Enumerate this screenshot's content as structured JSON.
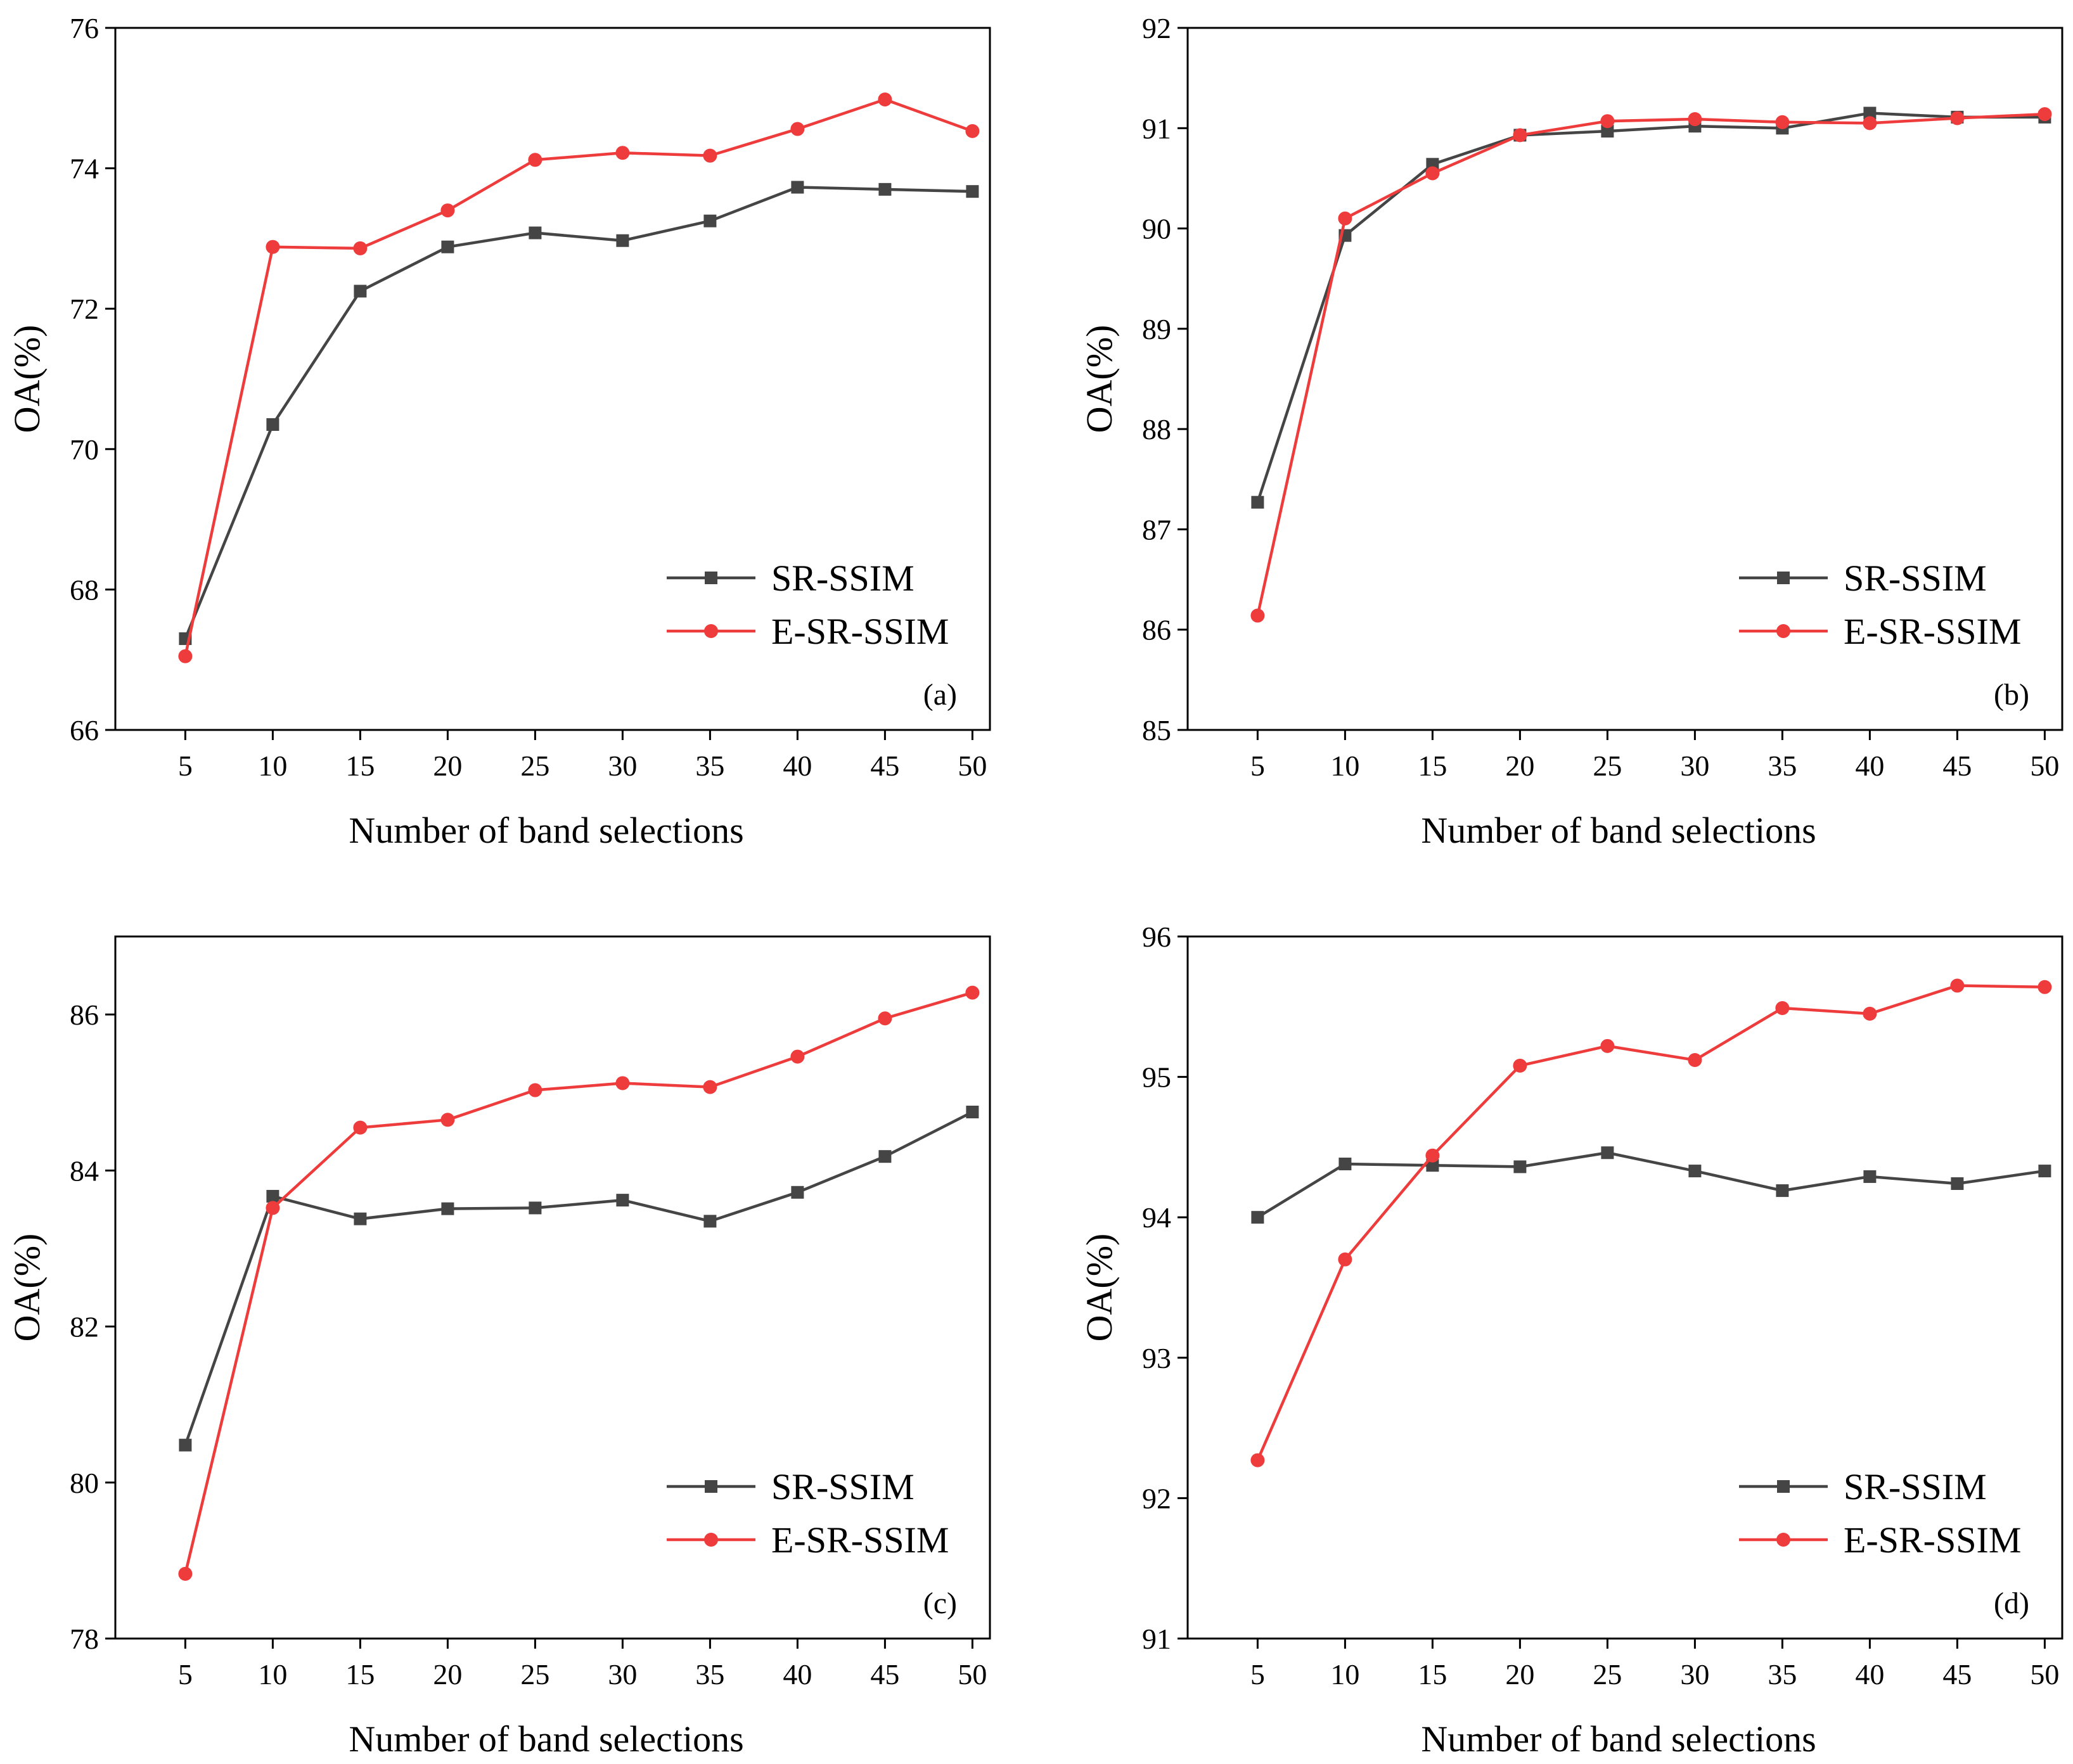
{
  "series_styles": {
    "SR-SSIM": {
      "color": "#454545",
      "marker": "square"
    },
    "E-SR-SSIM": {
      "color": "#ee3b3b",
      "marker": "circle"
    }
  },
  "chart_data": [
    {
      "type": "line",
      "panel": "(a)",
      "xlabel": "Number of band selections",
      "ylabel": "OA(%)",
      "x": [
        5,
        10,
        15,
        20,
        25,
        30,
        35,
        40,
        45,
        50
      ],
      "xlim": [
        1,
        51
      ],
      "ylim": [
        66,
        76
      ],
      "yticks": [
        66,
        68,
        70,
        72,
        74,
        76
      ],
      "legend_position": "lower-right",
      "series": [
        {
          "name": "SR-SSIM",
          "values": [
            67.3,
            70.35,
            72.25,
            72.88,
            73.08,
            72.97,
            73.25,
            73.73,
            73.7,
            73.67
          ]
        },
        {
          "name": "E-SR-SSIM",
          "values": [
            67.05,
            72.88,
            72.86,
            73.4,
            74.12,
            74.22,
            74.18,
            74.56,
            74.98,
            74.53
          ]
        }
      ]
    },
    {
      "type": "line",
      "panel": "(b)",
      "xlabel": "Number of band selections",
      "ylabel": "OA(%)",
      "x": [
        5,
        10,
        15,
        20,
        25,
        30,
        35,
        40,
        45,
        50
      ],
      "xlim": [
        1,
        51
      ],
      "ylim": [
        85,
        92
      ],
      "yticks": [
        85,
        86,
        87,
        88,
        89,
        90,
        91,
        92
      ],
      "legend_position": "lower-right",
      "series": [
        {
          "name": "SR-SSIM",
          "values": [
            87.27,
            89.93,
            90.64,
            90.93,
            90.97,
            91.02,
            91.0,
            91.15,
            91.11,
            91.11
          ]
        },
        {
          "name": "E-SR-SSIM",
          "values": [
            86.14,
            90.1,
            90.55,
            90.93,
            91.07,
            91.09,
            91.06,
            91.05,
            91.1,
            91.14
          ]
        }
      ]
    },
    {
      "type": "line",
      "panel": "(c)",
      "xlabel": "Number of band selections",
      "ylabel": "OA(%)",
      "x": [
        5,
        10,
        15,
        20,
        25,
        30,
        35,
        40,
        45,
        50
      ],
      "xlim": [
        1,
        51
      ],
      "ylim": [
        78,
        87
      ],
      "yticks": [
        78,
        80,
        82,
        84,
        86
      ],
      "legend_position": "lower-right",
      "series": [
        {
          "name": "SR-SSIM",
          "values": [
            80.48,
            83.67,
            83.38,
            83.51,
            83.52,
            83.62,
            83.35,
            83.72,
            84.18,
            84.75
          ]
        },
        {
          "name": "E-SR-SSIM",
          "values": [
            78.83,
            83.52,
            84.55,
            84.65,
            85.03,
            85.12,
            85.07,
            85.46,
            85.95,
            86.28
          ]
        }
      ]
    },
    {
      "type": "line",
      "panel": "(d)",
      "xlabel": "Number of band selections",
      "ylabel": "OA(%)",
      "x": [
        5,
        10,
        15,
        20,
        25,
        30,
        35,
        40,
        45,
        50
      ],
      "xlim": [
        1,
        51
      ],
      "ylim": [
        91,
        96
      ],
      "yticks": [
        91,
        92,
        93,
        94,
        95,
        96
      ],
      "legend_position": "lower-right",
      "series": [
        {
          "name": "SR-SSIM",
          "values": [
            94.0,
            94.38,
            94.37,
            94.36,
            94.46,
            94.33,
            94.19,
            94.29,
            94.24,
            94.33
          ]
        },
        {
          "name": "E-SR-SSIM",
          "values": [
            92.27,
            93.7,
            94.44,
            95.08,
            95.22,
            95.12,
            95.49,
            95.45,
            95.65,
            95.64
          ]
        }
      ]
    }
  ]
}
